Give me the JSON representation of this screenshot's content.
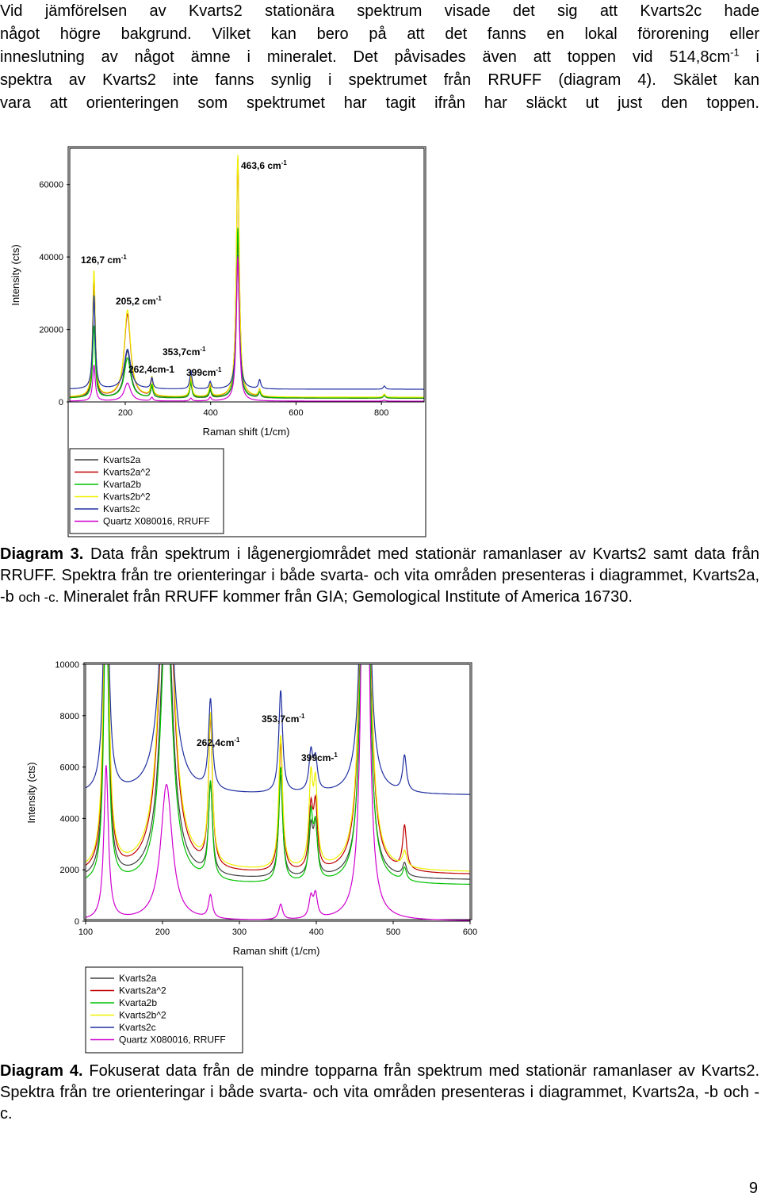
{
  "intro": {
    "lines": [
      "Vid jämförelsen av Kvarts2 stationära spektrum visade det sig att Kvarts2c hade",
      "något högre bakgrund. Vilket kan bero på att det fanns en lokal förorening eller",
      "inneslutning av något ämne i mineralet. Det påvisades även att toppen vid 514,8cm",
      "spektra av Kvarts2 inte fanns synlig i spektrumet från RRUFF (diagram 4). Skälet kan",
      "vara att orienteringen som spektrumet har tagit ifrån har släckt ut just den toppen."
    ],
    "sup": "-1",
    "line3_tail": " i"
  },
  "caption3": {
    "label": "Diagram 3.",
    "text1": " Data från spektrum i lågenergiområdet med stationär ramanlaser av Kvarts2 samt data från RRUFF. Spektra från tre orienteringar i både svarta- och vita områden presenteras i diagrammet, Kvarts2a, -b ",
    "text_och": "och -c.",
    "text2": " Mineralet från RRUFF kommer från GIA; Gemological Institute of America 16730."
  },
  "caption4": {
    "label": "Diagram 4.",
    "text": " Fokuserat data från de mindre topparna från spektrum med stationär ramanlaser av Kvarts2. Spektra från tre orienteringar i både svarta- och vita områden presenteras i diagrammet, Kvarts2a, -b och -c."
  },
  "page_number": "9",
  "chart_data": [
    {
      "type": "line",
      "xlabel": "Raman shift (1/cm)",
      "ylabel": "Intensity (cts)",
      "xlim": [
        70,
        900
      ],
      "ylim": [
        0,
        70000
      ],
      "xticks": [
        "200",
        "400",
        "600",
        "800"
      ],
      "yticks": [
        "0",
        "20000",
        "40000",
        "60000"
      ],
      "legend_position": "below",
      "grid": false,
      "annotations": [
        {
          "text": "463,6 cm",
          "sup": "-1",
          "x": 463.6
        },
        {
          "text": "126,7 cm",
          "sup": "-1",
          "x": 126.7
        },
        {
          "text": "205,2 cm",
          "sup": "-1",
          "x": 205.2
        },
        {
          "text": "353,7cm",
          "sup": "-1",
          "x": 353.7
        },
        {
          "text": "262,4cm-1",
          "sup": "",
          "x": 262.4
        },
        {
          "text": "399cm",
          "sup": "-1",
          "x": 399
        }
      ],
      "series": [
        {
          "name": "Kvarts2a",
          "color": "#404040",
          "scale": 1.0,
          "base": 1000,
          "peaks": [
            [
              126.7,
              30000
            ],
            [
              205.2,
              13000
            ],
            [
              262.4,
              3000
            ],
            [
              353.7,
              4000
            ],
            [
              399,
              2000
            ],
            [
              463.6,
              44000
            ],
            [
              514.8,
              1500
            ],
            [
              807,
              800
            ]
          ]
        },
        {
          "name": "Kvarts2a^2",
          "color": "#c00000",
          "scale": 1.0,
          "base": 1200,
          "peaks": [
            [
              126.7,
              34000
            ],
            [
              205.2,
              23000
            ],
            [
              262.4,
              5000
            ],
            [
              353.7,
              5500
            ],
            [
              399,
              3000
            ],
            [
              463.6,
              66000
            ],
            [
              514.8,
              2000
            ],
            [
              807,
              900
            ]
          ]
        },
        {
          "name": "Kvarta2b",
          "color": "#00c000",
          "scale": 1.0,
          "base": 1100,
          "peaks": [
            [
              126.7,
              20000
            ],
            [
              205.2,
              11000
            ],
            [
              262.4,
              3500
            ],
            [
              353.7,
              4500
            ],
            [
              399,
              2500
            ],
            [
              463.6,
              47000
            ],
            [
              514.8,
              1500
            ],
            [
              807,
              800
            ]
          ]
        },
        {
          "name": "Kvarts2b^2",
          "color": "#f0f000",
          "scale": 1.0,
          "base": 1300,
          "peaks": [
            [
              126.7,
              35000
            ],
            [
              205.2,
              24000
            ],
            [
              262.4,
              5200
            ],
            [
              353.7,
              5800
            ],
            [
              399,
              3500
            ],
            [
              463.6,
              67000
            ],
            [
              514.8,
              2000
            ],
            [
              807,
              900
            ]
          ]
        },
        {
          "name": "Kvarts2c",
          "color": "#2030a0",
          "scale": 1.0,
          "base": 3500,
          "peaks": [
            [
              126.7,
              26000
            ],
            [
              205.2,
              11000
            ],
            [
              262.4,
              3000
            ],
            [
              353.7,
              5000
            ],
            [
              399,
              2000
            ],
            [
              463.6,
              37000
            ],
            [
              514.8,
              2500
            ],
            [
              807,
              900
            ]
          ]
        },
        {
          "name": "Quartz X080016, RRUFF",
          "color": "#d000d0",
          "scale": 1.0,
          "base": 200,
          "peaks": [
            [
              126.7,
              10000
            ],
            [
              205.2,
              5000
            ],
            [
              262.4,
              1000
            ],
            [
              353.7,
              800
            ],
            [
              399,
              1000
            ],
            [
              463.6,
              40000
            ],
            [
              807,
              300
            ]
          ]
        }
      ]
    },
    {
      "type": "line",
      "xlabel": "Raman shift (1/cm)",
      "ylabel": "Intensity (cts)",
      "xlim": [
        100,
        600
      ],
      "ylim": [
        0,
        10000
      ],
      "xticks": [
        "100",
        "200",
        "300",
        "400",
        "500",
        "600"
      ],
      "yticks": [
        "0",
        "2000",
        "4000",
        "6000",
        "8000",
        "10000"
      ],
      "legend_position": "below",
      "grid": false,
      "annotations": [
        {
          "text": "262,4cm",
          "sup": "-1",
          "x": 262.4
        },
        {
          "text": "353,7cm",
          "sup": "-1",
          "x": 353.7
        },
        {
          "text": "399cm-",
          "sup": "1",
          "x": 399
        }
      ],
      "series": [
        {
          "name": "Kvarts2a",
          "color": "#404040",
          "base": 1600,
          "peaks": [
            [
              126.7,
              13000
            ],
            [
              205.2,
              12000
            ],
            [
              262.4,
              3500
            ],
            [
              353.7,
              4000
            ],
            [
              393,
              1800
            ],
            [
              399,
              1900
            ],
            [
              463.6,
              30000
            ],
            [
              514.8,
              500
            ]
          ]
        },
        {
          "name": "Kvarts2a^2",
          "color": "#c00000",
          "base": 1800,
          "peaks": [
            [
              126.7,
              15000
            ],
            [
              205.2,
              16000
            ],
            [
              262.4,
              5800
            ],
            [
              353.7,
              5000
            ],
            [
              393,
              2300
            ],
            [
              399,
              2400
            ],
            [
              463.6,
              40000
            ],
            [
              514.8,
              1700
            ]
          ]
        },
        {
          "name": "Kvarta2b",
          "color": "#00c000",
          "base": 1400,
          "peaks": [
            [
              126.7,
              12000
            ],
            [
              205.2,
              11000
            ],
            [
              262.4,
              3800
            ],
            [
              353.7,
              4500
            ],
            [
              393,
              2500
            ],
            [
              399,
              2000
            ],
            [
              463.6,
              32000
            ],
            [
              514.8,
              500
            ]
          ]
        },
        {
          "name": "Kvarts2b^2",
          "color": "#f0f000",
          "base": 1900,
          "peaks": [
            [
              126.7,
              16000
            ],
            [
              205.2,
              17000
            ],
            [
              262.4,
              5800
            ],
            [
              353.7,
              5200
            ],
            [
              393,
              3300
            ],
            [
              399,
              3000
            ],
            [
              463.6,
              42000
            ],
            [
              514.8,
              600
            ]
          ]
        },
        {
          "name": "Kvarts2c",
          "color": "#2030a0",
          "base": 4900,
          "peaks": [
            [
              126.7,
              12000
            ],
            [
              205.2,
              11000
            ],
            [
              262.4,
              3500
            ],
            [
              353.7,
              4000
            ],
            [
              393,
              1500
            ],
            [
              399,
              1200
            ],
            [
              463.6,
              28000
            ],
            [
              514.8,
              1400
            ]
          ]
        },
        {
          "name": "Quartz X080016, RRUFF",
          "color": "#d000d0",
          "base": 0,
          "peaks": [
            [
              126.7,
              6000
            ],
            [
              205.2,
              5300
            ],
            [
              262.4,
              900
            ],
            [
              353.7,
              600
            ],
            [
              393,
              800
            ],
            [
              399,
              900
            ],
            [
              463.6,
              30000
            ]
          ]
        }
      ]
    }
  ]
}
